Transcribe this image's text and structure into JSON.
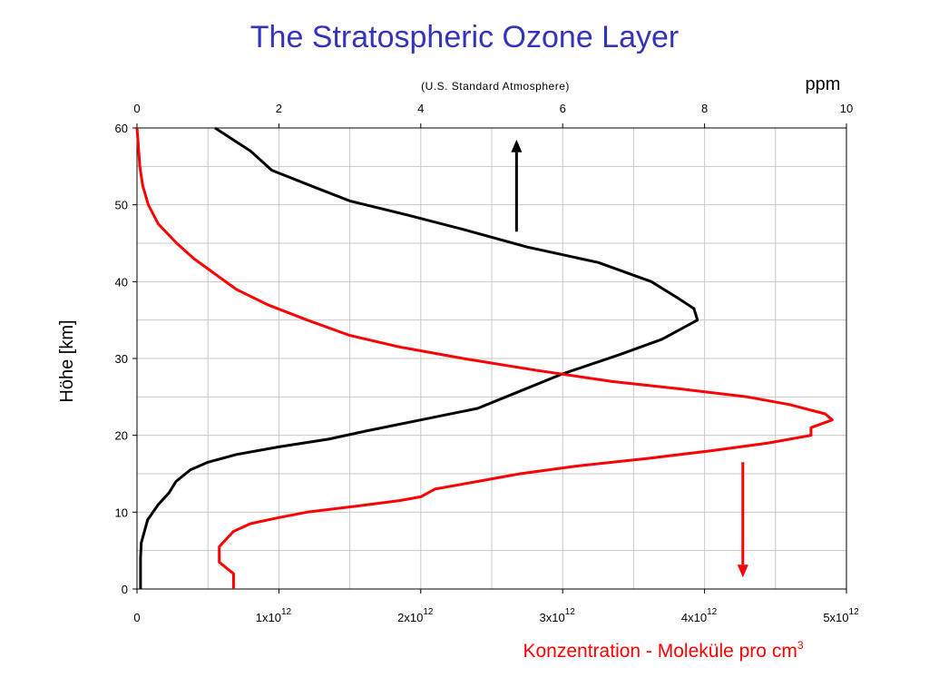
{
  "slide": {
    "title": "The Stratospheric Ozone Layer"
  },
  "chart_data": {
    "type": "line",
    "title": "The Stratospheric Ozone Layer",
    "subtitle": "(U.S. Standard Atmosphere)",
    "ylabel": "Höhe [km]",
    "ylim": [
      0,
      60
    ],
    "y_ticks": [
      "0",
      "10",
      "20",
      "30",
      "40",
      "50",
      "60"
    ],
    "top_axis": {
      "label": "ppm",
      "range": [
        0,
        10
      ],
      "ticks": [
        "0",
        "2",
        "4",
        "6",
        "8",
        "10"
      ]
    },
    "bottom_axis": {
      "label_main": "Konzentration - Moleküle pro cm",
      "label_sup": "3",
      "range": [
        0,
        5000000000000.0
      ],
      "ticks": [
        {
          "base": "0",
          "exp": ""
        },
        {
          "base": "1x10",
          "exp": "12"
        },
        {
          "base": "2x10",
          "exp": "12"
        },
        {
          "base": "3x10",
          "exp": "12"
        },
        {
          "base": "4x10",
          "exp": "12"
        },
        {
          "base": "5x10",
          "exp": "12"
        }
      ]
    },
    "grid": true,
    "series": [
      {
        "color": "#000000",
        "axis": "top",
        "points": [
          [
            0.05,
            0
          ],
          [
            0.05,
            4
          ],
          [
            0.06,
            6
          ],
          [
            0.15,
            9
          ],
          [
            0.3,
            11
          ],
          [
            0.45,
            12.5
          ],
          [
            0.55,
            14
          ],
          [
            0.75,
            15.5
          ],
          [
            1.0,
            16.5
          ],
          [
            1.4,
            17.5
          ],
          [
            2.0,
            18.5
          ],
          [
            2.7,
            19.5
          ],
          [
            3.2,
            20.5
          ],
          [
            4.0,
            22
          ],
          [
            4.8,
            23.5
          ],
          [
            5.2,
            25
          ],
          [
            6.0,
            28
          ],
          [
            6.8,
            30.5
          ],
          [
            7.4,
            32.5
          ],
          [
            7.9,
            35
          ],
          [
            7.85,
            36.5
          ],
          [
            7.6,
            38
          ],
          [
            7.25,
            40
          ],
          [
            6.5,
            42.5
          ],
          [
            5.5,
            44.5
          ],
          [
            4.6,
            46.8
          ],
          [
            3.8,
            48.7
          ],
          [
            3.0,
            50.5
          ],
          [
            2.5,
            52.3
          ],
          [
            1.9,
            54.5
          ],
          [
            1.6,
            57
          ],
          [
            1.1,
            60
          ]
        ]
      },
      {
        "color": "#ff0000",
        "axis": "bottom",
        "points": [
          [
            680000000000.0,
            0
          ],
          [
            680000000000.0,
            2
          ],
          [
            580000000000.0,
            3.5
          ],
          [
            580000000000.0,
            5.5
          ],
          [
            680000000000.0,
            7.5
          ],
          [
            800000000000.0,
            8.5
          ],
          [
            1000000000000.0,
            9.3
          ],
          [
            1200000000000.0,
            10
          ],
          [
            1550000000000.0,
            10.8
          ],
          [
            1850000000000.0,
            11.5
          ],
          [
            2000000000000.0,
            12.0
          ],
          [
            2100000000000.0,
            13.0
          ],
          [
            2400000000000.0,
            14.0
          ],
          [
            2700000000000.0,
            15.0
          ],
          [
            3100000000000.0,
            16.0
          ],
          [
            3600000000000.0,
            17.0
          ],
          [
            4050000000000.0,
            18.0
          ],
          [
            4450000000000.0,
            19.0
          ],
          [
            4750000000000.0,
            20.0
          ],
          [
            4750000000000.0,
            21.0
          ],
          [
            4900000000000.0,
            22.0
          ],
          [
            4850000000000.0,
            22.8
          ],
          [
            4600000000000.0,
            24.0
          ],
          [
            4300000000000.0,
            25.0
          ],
          [
            3850000000000.0,
            26.0
          ],
          [
            3350000000000.0,
            27.0
          ],
          [
            2800000000000.0,
            28.5
          ],
          [
            2300000000000.0,
            30.0
          ],
          [
            1850000000000.0,
            31.5
          ],
          [
            1500000000000.0,
            33.0
          ],
          [
            1200000000000.0,
            35.0
          ],
          [
            920000000000.0,
            37.0
          ],
          [
            700000000000.0,
            39.0
          ],
          [
            550000000000.0,
            41.0
          ],
          [
            400000000000.0,
            43.0
          ],
          [
            280000000000.0,
            45.0
          ],
          [
            150000000000.0,
            47.5
          ],
          [
            80000000000.0,
            50.0
          ],
          [
            40000000000.0,
            52.5
          ],
          [
            20000000000.0,
            55.0
          ],
          [
            10000000000.0,
            57.5
          ],
          [
            0.0,
            60.0
          ]
        ]
      }
    ],
    "arrows": [
      {
        "color": "#000000",
        "axis": "top",
        "x": 5.35,
        "y_from": 46.5,
        "y_to": 58.5
      },
      {
        "color": "#ff0000",
        "axis": "bottom",
        "x": 4270000000000.0,
        "y_from": 16.5,
        "y_to": 1.5
      }
    ]
  }
}
